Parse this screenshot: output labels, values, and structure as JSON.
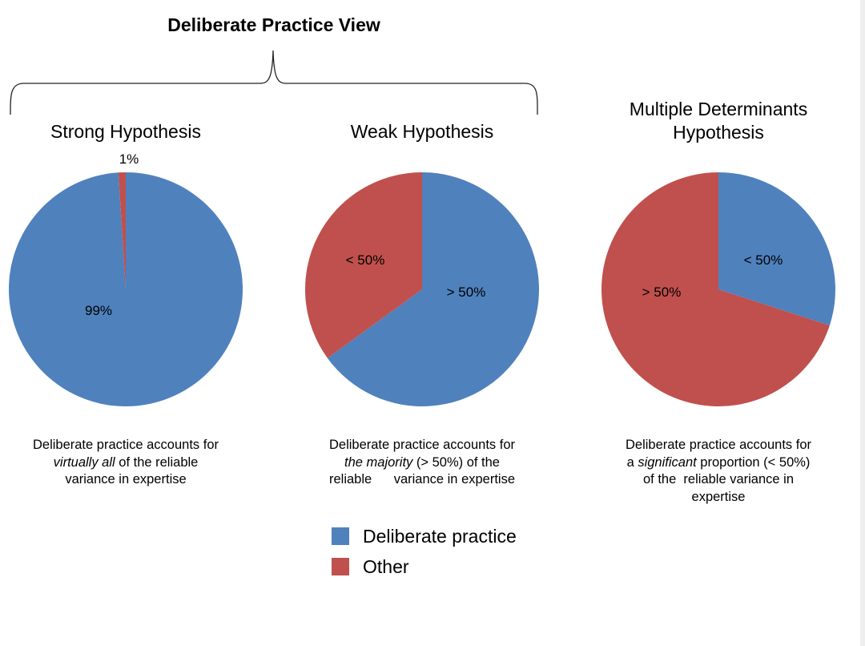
{
  "group_title": "Deliberate Practice View",
  "colors": {
    "deliberate": "#4f81bd",
    "other": "#c0504d"
  },
  "chart_data": [
    {
      "type": "pie",
      "title": "Strong Hypothesis",
      "slices": [
        {
          "name": "Deliberate practice",
          "value": 99,
          "label": "99%"
        },
        {
          "name": "Other",
          "value": 1,
          "label": "1%"
        }
      ]
    },
    {
      "type": "pie",
      "title": "Weak Hypothesis",
      "slices": [
        {
          "name": "Deliberate practice",
          "value": 65,
          "label": "> 50%"
        },
        {
          "name": "Other",
          "value": 35,
          "label": "< 50%"
        }
      ]
    },
    {
      "type": "pie",
      "title_lines": [
        "Multiple Determinants",
        "Hypothesis"
      ],
      "slices": [
        {
          "name": "Deliberate practice",
          "value": 30,
          "label": "< 50%"
        },
        {
          "name": "Other",
          "value": 70,
          "label": "> 50%"
        }
      ]
    }
  ],
  "captions": {
    "strong": {
      "line1": "Deliberate practice accounts for",
      "line2_em": "virtually all",
      "line2_rest": " of the reliable",
      "line3": "variance in expertise"
    },
    "weak": {
      "line1": "Deliberate practice accounts for",
      "line2_em": "the majority",
      "line2_rest": " (> 50%) of the",
      "line3": "reliable      variance in expertise"
    },
    "multiple": {
      "line1": "Deliberate practice accounts for",
      "line2_pre": "a ",
      "line2_em": "significant",
      "line2_rest": " proportion (< 50%)",
      "line3": "of the  reliable variance in",
      "line4": "expertise"
    }
  },
  "legend": [
    {
      "label": "Deliberate practice",
      "color": "#4f81bd"
    },
    {
      "label": "Other",
      "color": "#c0504d"
    }
  ]
}
